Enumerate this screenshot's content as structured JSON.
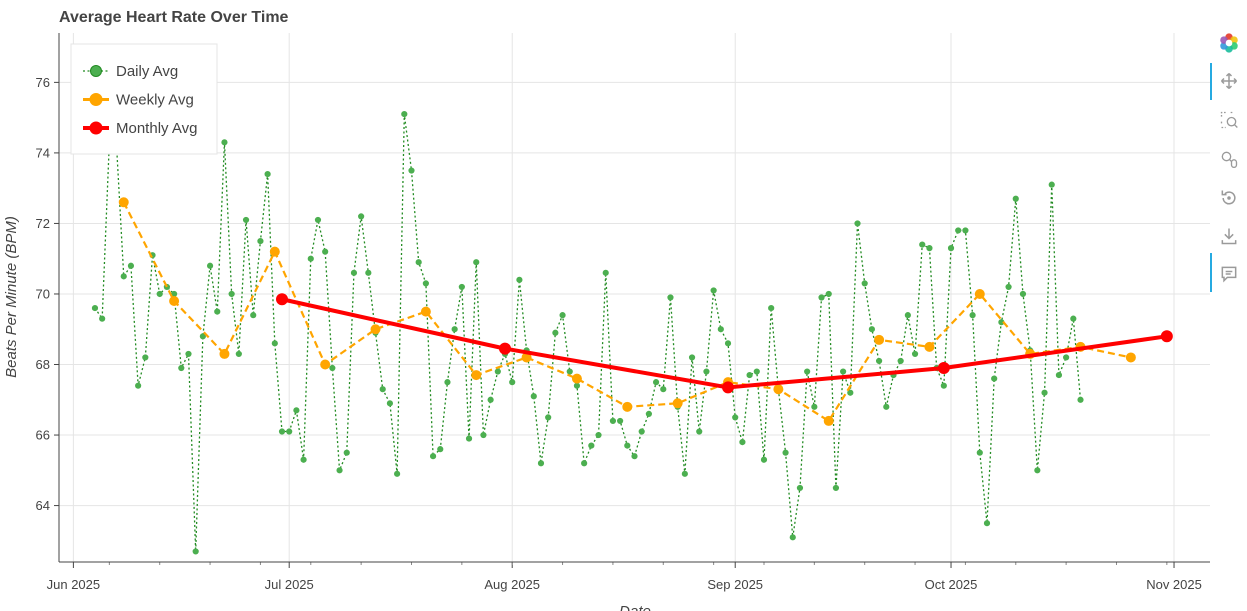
{
  "chart_data": {
    "type": "line",
    "title": "Average Heart Rate Over Time",
    "xlabel": "Date",
    "ylabel": "Beats Per Minute (BPM)",
    "x_type": "date",
    "xlim": [
      "2025-05-30",
      "2025-11-06"
    ],
    "ylim": [
      62.4,
      77.4
    ],
    "x_ticks": [
      {
        "date": "2025-06-01",
        "label": "Jun 2025"
      },
      {
        "date": "2025-07-01",
        "label": "Jul 2025"
      },
      {
        "date": "2025-08-01",
        "label": "Aug 2025"
      },
      {
        "date": "2025-09-01",
        "label": "Sep 2025"
      },
      {
        "date": "2025-10-01",
        "label": "Oct 2025"
      },
      {
        "date": "2025-11-01",
        "label": "Nov 2025"
      }
    ],
    "y_ticks": [
      64,
      66,
      68,
      70,
      72,
      74,
      76
    ],
    "grid": true,
    "legend_position": "top-left",
    "series": [
      {
        "name": "Daily Avg",
        "style": "dotted-line-markers",
        "color": "#228b22",
        "marker_color": "#4caf50",
        "x_start": "2025-06-04",
        "values": [
          69.6,
          69.3,
          74.3,
          74.2,
          70.5,
          70.8,
          67.4,
          68.2,
          71.1,
          70.0,
          70.2,
          70.0,
          67.9,
          68.3,
          62.7,
          68.8,
          70.8,
          69.5,
          74.3,
          70.0,
          68.3,
          72.1,
          69.4,
          71.5,
          73.4,
          68.6,
          66.1,
          66.1,
          66.7,
          65.3,
          71.0,
          72.1,
          71.2,
          67.9,
          65.0,
          65.5,
          70.6,
          72.2,
          70.6,
          68.9,
          67.3,
          66.9,
          64.9,
          75.1,
          73.5,
          70.9,
          70.3,
          65.4,
          65.6,
          67.5,
          69.0,
          70.2,
          65.9,
          70.9,
          66.0,
          67.0,
          67.8,
          68.3,
          67.5,
          70.4,
          68.4,
          67.1,
          65.2,
          66.5,
          68.9,
          69.4,
          67.8,
          67.4,
          65.2,
          65.7,
          66.0,
          70.6,
          66.4,
          66.4,
          65.7,
          65.4,
          66.1,
          66.6,
          67.5,
          67.3,
          69.9,
          66.8,
          64.9,
          68.2,
          66.1,
          67.8,
          70.1,
          69.0,
          68.6,
          66.5,
          65.8,
          67.7,
          67.8,
          65.3,
          69.6,
          67.3,
          65.5,
          63.1,
          64.5,
          67.8,
          66.8,
          69.9,
          70.0,
          64.5,
          67.8,
          67.2,
          72.0,
          70.3,
          69.0,
          68.1,
          66.8,
          67.7,
          68.1,
          69.4,
          68.3,
          71.4,
          71.3,
          67.9,
          67.4,
          71.3,
          71.8,
          71.8,
          69.4,
          65.5,
          63.5,
          67.6,
          69.2,
          70.2,
          72.7,
          70.0,
          68.4,
          65.0,
          67.2,
          73.1,
          67.7,
          68.2,
          69.3,
          67.0
        ]
      },
      {
        "name": "Weekly Avg",
        "style": "dashed-line-markers",
        "color": "#ffa500",
        "points": [
          {
            "x": "2025-06-08",
            "y": 72.6
          },
          {
            "x": "2025-06-15",
            "y": 69.8
          },
          {
            "x": "2025-06-22",
            "y": 68.3
          },
          {
            "x": "2025-06-29",
            "y": 71.2
          },
          {
            "x": "2025-07-06",
            "y": 68.0
          },
          {
            "x": "2025-07-13",
            "y": 69.0
          },
          {
            "x": "2025-07-20",
            "y": 69.5
          },
          {
            "x": "2025-07-27",
            "y": 67.7
          },
          {
            "x": "2025-08-03",
            "y": 68.2
          },
          {
            "x": "2025-08-10",
            "y": 67.6
          },
          {
            "x": "2025-08-17",
            "y": 66.8
          },
          {
            "x": "2025-08-24",
            "y": 66.9
          },
          {
            "x": "2025-08-31",
            "y": 67.5
          },
          {
            "x": "2025-09-07",
            "y": 67.3
          },
          {
            "x": "2025-09-14",
            "y": 66.4
          },
          {
            "x": "2025-09-21",
            "y": 68.7
          },
          {
            "x": "2025-09-28",
            "y": 68.5
          },
          {
            "x": "2025-10-05",
            "y": 70.0
          },
          {
            "x": "2025-10-12",
            "y": 68.3
          },
          {
            "x": "2025-10-19",
            "y": 68.5
          },
          {
            "x": "2025-10-26",
            "y": 68.2
          }
        ]
      },
      {
        "name": "Monthly Avg",
        "style": "solid-line-markers",
        "color": "#ff0000",
        "points": [
          {
            "x": "2025-06-30",
            "y": 69.85
          },
          {
            "x": "2025-07-31",
            "y": 68.45
          },
          {
            "x": "2025-08-31",
            "y": 67.35
          },
          {
            "x": "2025-09-30",
            "y": 67.9
          },
          {
            "x": "2025-10-31",
            "y": 68.8
          }
        ]
      }
    ]
  },
  "toolbar": {
    "tools": [
      {
        "name": "bokeh-logo",
        "icon": "bokeh-logo-icon"
      },
      {
        "name": "pan-tool",
        "icon": "pan-icon",
        "active": true
      },
      {
        "name": "box-zoom-tool",
        "icon": "box-zoom-icon"
      },
      {
        "name": "wheel-zoom-tool",
        "icon": "wheel-zoom-icon"
      },
      {
        "name": "reset-tool",
        "icon": "reset-icon"
      },
      {
        "name": "save-tool",
        "icon": "save-icon"
      },
      {
        "name": "hover-tool",
        "icon": "hover-icon",
        "active": true
      }
    ]
  }
}
